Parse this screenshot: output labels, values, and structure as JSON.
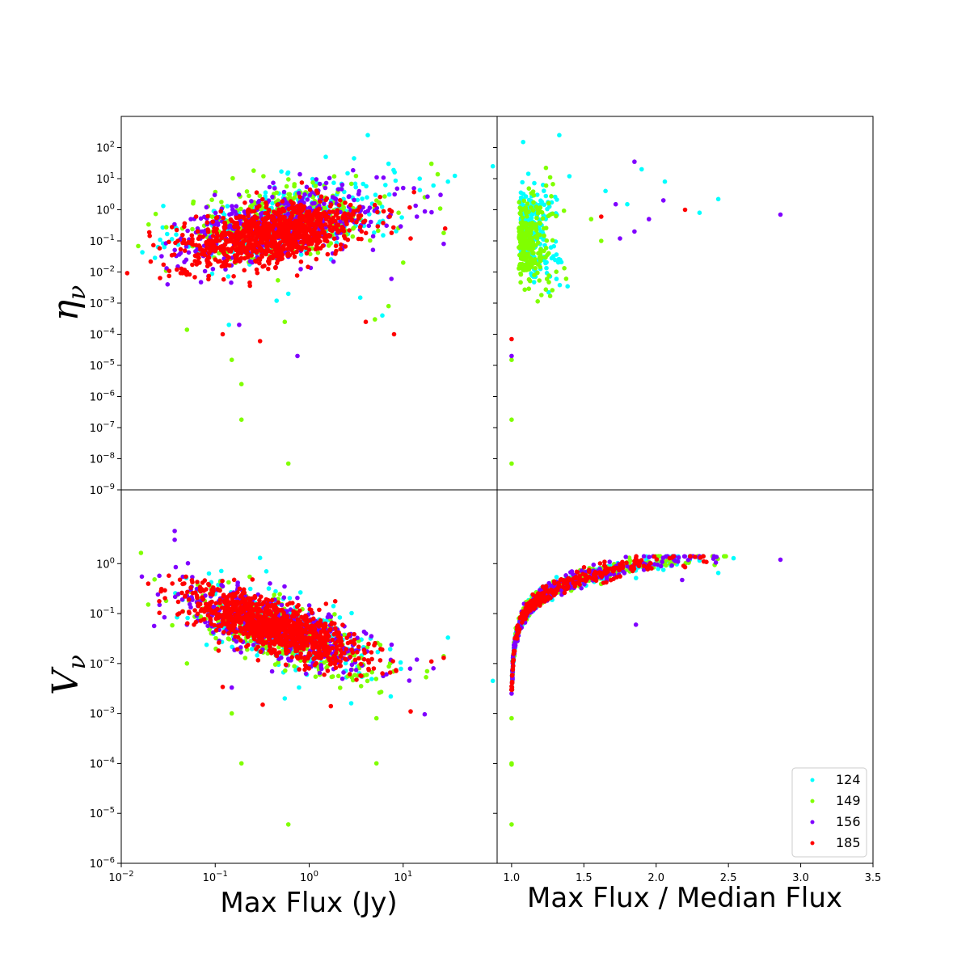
{
  "chart_data": [
    {
      "panel": "top-left",
      "type": "scatter",
      "xscale": "log",
      "yscale": "log",
      "xlim": [
        0.01,
        100
      ],
      "ylim": [
        1e-09,
        1000
      ],
      "xlabel": "",
      "ylabel": "η_ν",
      "ylabel_symbol": "η",
      "ylabel_subscript": "ν",
      "yticks": [
        {
          "value": 1e-09,
          "base": "10",
          "exp": "−9"
        },
        {
          "value": 1e-08,
          "base": "10",
          "exp": "−8"
        },
        {
          "value": 1e-07,
          "base": "10",
          "exp": "−7"
        },
        {
          "value": 1e-06,
          "base": "10",
          "exp": "−6"
        },
        {
          "value": 1e-05,
          "base": "10",
          "exp": "−5"
        },
        {
          "value": 0.0001,
          "base": "10",
          "exp": "−4"
        },
        {
          "value": 0.001,
          "base": "10",
          "exp": "−3"
        },
        {
          "value": 0.01,
          "base": "10",
          "exp": "−2"
        },
        {
          "value": 0.1,
          "base": "10",
          "exp": "−1"
        },
        {
          "value": 1,
          "base": "10",
          "exp": "0"
        },
        {
          "value": 10,
          "base": "10",
          "exp": "1"
        },
        {
          "value": 100,
          "base": "10",
          "exp": "2"
        }
      ],
      "clusters": [
        {
          "series": "124",
          "count": 320,
          "cx": 0.6,
          "cy": 0.5,
          "sx": 0.55,
          "sy": 0.65,
          "corr": 0.45
        },
        {
          "series": "149",
          "count": 320,
          "cx": 0.6,
          "cy": 0.5,
          "sx": 0.55,
          "sy": 0.65,
          "corr": 0.45
        },
        {
          "series": "156",
          "count": 450,
          "cx": 0.5,
          "cy": 0.3,
          "sx": 0.55,
          "sy": 0.62,
          "corr": 0.45
        },
        {
          "series": "185",
          "count": 1000,
          "cx": 0.4,
          "cy": 0.15,
          "sx": 0.48,
          "sy": 0.52,
          "corr": 0.45
        }
      ],
      "outliers": [
        {
          "series": "124",
          "x": 4.2,
          "y": 250
        },
        {
          "series": "124",
          "x": 3.0,
          "y": 45
        },
        {
          "series": "124",
          "x": 1.5,
          "y": 50
        },
        {
          "series": "124",
          "x": 7.0,
          "y": 30
        },
        {
          "series": "124",
          "x": 0.12,
          "y": 0.8
        },
        {
          "series": "124",
          "x": 0.6,
          "y": 0.002
        },
        {
          "series": "124",
          "x": 0.45,
          "y": 0.0012
        },
        {
          "series": "124",
          "x": 3.5,
          "y": 0.0015
        },
        {
          "series": "124",
          "x": 6.0,
          "y": 0.0004
        },
        {
          "series": "124",
          "x": 0.14,
          "y": 0.0002
        },
        {
          "series": "124",
          "x": 15,
          "y": 10
        },
        {
          "series": "124",
          "x": 21,
          "y": 6
        },
        {
          "series": "124",
          "x": 30,
          "y": 8
        },
        {
          "series": "124",
          "x": 90,
          "y": 25
        },
        {
          "series": "149",
          "x": 0.05,
          "y": 0.00014
        },
        {
          "series": "149",
          "x": 0.03,
          "y": 0.011
        },
        {
          "series": "149",
          "x": 0.15,
          "y": 1.5e-05
        },
        {
          "series": "149",
          "x": 0.19,
          "y": 2.5e-06
        },
        {
          "series": "149",
          "x": 0.19,
          "y": 1.8e-07
        },
        {
          "series": "149",
          "x": 0.6,
          "y": 7e-09
        },
        {
          "series": "149",
          "x": 7.0,
          "y": 0.0008
        },
        {
          "series": "149",
          "x": 10,
          "y": 0.02
        },
        {
          "series": "149",
          "x": 0.55,
          "y": 0.00025
        },
        {
          "series": "149",
          "x": 5.0,
          "y": 0.0003
        },
        {
          "series": "149",
          "x": 27,
          "y": 0.18
        },
        {
          "series": "149",
          "x": 20,
          "y": 30
        },
        {
          "series": "156",
          "x": 0.75,
          "y": 2e-05
        },
        {
          "series": "156",
          "x": 0.065,
          "y": 0.25
        },
        {
          "series": "156",
          "x": 0.04,
          "y": 0.015
        },
        {
          "series": "156",
          "x": 0.055,
          "y": 0.5
        },
        {
          "series": "156",
          "x": 0.18,
          "y": 0.0002
        },
        {
          "series": "156",
          "x": 27,
          "y": 0.08
        },
        {
          "series": "156",
          "x": 14,
          "y": 0.6
        },
        {
          "series": "156",
          "x": 25,
          "y": 3
        },
        {
          "series": "156",
          "x": 7.5,
          "y": 0.006
        },
        {
          "series": "156",
          "x": 10,
          "y": 5
        },
        {
          "series": "185",
          "x": 0.3,
          "y": 6e-05
        },
        {
          "series": "185",
          "x": 0.12,
          "y": 0.0001
        },
        {
          "series": "185",
          "x": 0.04,
          "y": 0.1
        },
        {
          "series": "185",
          "x": 28,
          "y": 0.25
        },
        {
          "series": "185",
          "x": 12,
          "y": 0.12
        },
        {
          "series": "185",
          "x": 8,
          "y": 0.0001
        },
        {
          "series": "185",
          "x": 4,
          "y": 0.00025
        },
        {
          "series": "185",
          "x": 0.05,
          "y": 0.01
        }
      ]
    },
    {
      "panel": "top-right",
      "type": "scatter",
      "xscale": "linear",
      "yscale": "log",
      "xlim": [
        0.9,
        3.5
      ],
      "ylim": [
        1e-09,
        1000
      ],
      "xlabel": "",
      "ylabel": "",
      "clusters": [
        {
          "series": "124",
          "count": 260,
          "cx": 1.08,
          "cy": 0.2,
          "sx": 0.12,
          "sy": 0.7,
          "corr": 0.55
        },
        {
          "series": "149",
          "count": 260,
          "cx": 1.07,
          "cy": 0.1,
          "sx": 0.11,
          "sy": 0.7,
          "corr": 0.55
        },
        {
          "series": "156",
          "count": 380,
          "cx": 1.09,
          "cy": -0.1,
          "sx": 0.13,
          "sy": 0.8,
          "corr": 0.55
        },
        {
          "series": "185",
          "count": 900,
          "cx": 1.06,
          "cy": -0.2,
          "sx": 0.09,
          "sy": 0.75,
          "corr": 0.55
        }
      ],
      "outliers": [
        {
          "series": "124",
          "x": 1.33,
          "y": 250
        },
        {
          "series": "124",
          "x": 1.08,
          "y": 150
        },
        {
          "series": "124",
          "x": 1.9,
          "y": 20
        },
        {
          "series": "124",
          "x": 2.06,
          "y": 8
        },
        {
          "series": "124",
          "x": 2.43,
          "y": 2.2
        },
        {
          "series": "124",
          "x": 2.3,
          "y": 0.8
        },
        {
          "series": "124",
          "x": 1.4,
          "y": 12
        },
        {
          "series": "124",
          "x": 1.65,
          "y": 4
        },
        {
          "series": "124",
          "x": 1.8,
          "y": 1.5
        },
        {
          "series": "149",
          "x": 1.0,
          "y": 1.5e-05
        },
        {
          "series": "149",
          "x": 1.0,
          "y": 1.8e-07
        },
        {
          "series": "149",
          "x": 1.0,
          "y": 7e-09
        },
        {
          "series": "149",
          "x": 1.62,
          "y": 0.1
        },
        {
          "series": "149",
          "x": 1.55,
          "y": 0.5
        },
        {
          "series": "156",
          "x": 2.86,
          "y": 0.7
        },
        {
          "series": "156",
          "x": 1.85,
          "y": 35
        },
        {
          "series": "156",
          "x": 2.05,
          "y": 2
        },
        {
          "series": "156",
          "x": 1.95,
          "y": 0.5
        },
        {
          "series": "156",
          "x": 1.85,
          "y": 0.2
        },
        {
          "series": "156",
          "x": 1.75,
          "y": 0.12
        },
        {
          "series": "156",
          "x": 1.0,
          "y": 2e-05
        },
        {
          "series": "156",
          "x": 1.72,
          "y": 1.5
        },
        {
          "series": "185",
          "x": 2.2,
          "y": 1.0
        },
        {
          "series": "185",
          "x": 1.0,
          "y": 7e-05
        },
        {
          "series": "185",
          "x": 1.62,
          "y": 0.6
        }
      ]
    },
    {
      "panel": "bottom-left",
      "type": "scatter",
      "xscale": "log",
      "yscale": "log",
      "xlim": [
        0.01,
        100
      ],
      "ylim": [
        1e-06,
        30
      ],
      "xlabel": "Max Flux (Jy)",
      "ylabel": "V_ν",
      "ylabel_symbol": "V",
      "ylabel_subscript": "ν",
      "yticks": [
        {
          "value": 1e-06,
          "base": "10",
          "exp": "−6"
        },
        {
          "value": 1e-05,
          "base": "10",
          "exp": "−5"
        },
        {
          "value": 0.0001,
          "base": "10",
          "exp": "−4"
        },
        {
          "value": 0.001,
          "base": "10",
          "exp": "−3"
        },
        {
          "value": 0.01,
          "base": "10",
          "exp": "−2"
        },
        {
          "value": 0.1,
          "base": "10",
          "exp": "−1"
        },
        {
          "value": 1,
          "base": "10",
          "exp": "0"
        }
      ],
      "xticks": [
        {
          "value": 0.01,
          "base": "10",
          "exp": "−2"
        },
        {
          "value": 0.1,
          "base": "10",
          "exp": "−1"
        },
        {
          "value": 1,
          "base": "10",
          "exp": "0"
        },
        {
          "value": 10,
          "base": "10",
          "exp": "1"
        }
      ],
      "clusters": [
        {
          "series": "124",
          "count": 320,
          "cx": 0.5,
          "cy": 0.045,
          "sx": 0.5,
          "sy": 0.42,
          "corr": -0.7
        },
        {
          "series": "149",
          "count": 320,
          "cx": 0.5,
          "cy": 0.04,
          "sx": 0.5,
          "sy": 0.42,
          "corr": -0.7
        },
        {
          "series": "156",
          "count": 450,
          "cx": 0.45,
          "cy": 0.05,
          "sx": 0.5,
          "sy": 0.42,
          "corr": -0.7
        },
        {
          "series": "185",
          "count": 1000,
          "cx": 0.4,
          "cy": 0.055,
          "sx": 0.45,
          "sy": 0.37,
          "corr": -0.72
        }
      ],
      "outliers": [
        {
          "series": "124",
          "x": 0.3,
          "y": 1.3
        },
        {
          "series": "124",
          "x": 0.55,
          "y": 0.002
        },
        {
          "series": "124",
          "x": 2.8,
          "y": 0.0016
        },
        {
          "series": "124",
          "x": 30,
          "y": 0.033
        },
        {
          "series": "124",
          "x": 90,
          "y": 0.0045
        },
        {
          "series": "124",
          "x": 0.35,
          "y": 0.7
        },
        {
          "series": "149",
          "x": 0.03,
          "y": 0.18
        },
        {
          "series": "149",
          "x": 0.05,
          "y": 0.01
        },
        {
          "series": "149",
          "x": 0.15,
          "y": 0.001
        },
        {
          "series": "149",
          "x": 0.19,
          "y": 0.0001
        },
        {
          "series": "149",
          "x": 0.6,
          "y": 6e-06
        },
        {
          "series": "149",
          "x": 5.2,
          "y": 0.0008
        },
        {
          "series": "149",
          "x": 5.2,
          "y": 0.0001
        },
        {
          "series": "149",
          "x": 18,
          "y": 0.007
        },
        {
          "series": "149",
          "x": 27,
          "y": 0.014
        },
        {
          "series": "156",
          "x": 0.037,
          "y": 4.5
        },
        {
          "series": "156",
          "x": 0.037,
          "y": 3.0
        },
        {
          "series": "156",
          "x": 0.038,
          "y": 0.85
        },
        {
          "series": "156",
          "x": 0.05,
          "y": 0.06
        },
        {
          "series": "156",
          "x": 0.055,
          "y": 0.3
        },
        {
          "series": "156",
          "x": 0.15,
          "y": 0.0033
        },
        {
          "series": "156",
          "x": 21,
          "y": 0.008
        },
        {
          "series": "156",
          "x": 14,
          "y": 0.012
        },
        {
          "series": "185",
          "x": 0.035,
          "y": 0.4
        },
        {
          "series": "185",
          "x": 0.045,
          "y": 0.11
        },
        {
          "series": "185",
          "x": 0.12,
          "y": 0.0034
        },
        {
          "series": "185",
          "x": 0.32,
          "y": 0.0015
        },
        {
          "series": "185",
          "x": 1.7,
          "y": 0.0014
        },
        {
          "series": "185",
          "x": 12,
          "y": 0.0011
        },
        {
          "series": "185",
          "x": 27,
          "y": 0.013
        },
        {
          "series": "185",
          "x": 20,
          "y": 0.011
        }
      ]
    },
    {
      "panel": "bottom-right",
      "type": "scatter",
      "xscale": "linear",
      "yscale": "log",
      "xlim": [
        0.9,
        3.5
      ],
      "ylim": [
        1e-06,
        30
      ],
      "xlabel": "Max Flux / Median Flux",
      "ylabel": "",
      "xticks": [
        "1.0",
        "1.5",
        "2.0",
        "2.5",
        "3.0",
        "3.5"
      ],
      "curve": {
        "y_top": 0.85,
        "x_span": 1.55,
        "density_count": 1200
      },
      "outliers": [
        {
          "series": "124",
          "x": 2.3,
          "y": 1.15
        },
        {
          "series": "124",
          "x": 2.43,
          "y": 0.65
        },
        {
          "series": "124",
          "x": 2.05,
          "y": 0.75
        },
        {
          "series": "124",
          "x": 1.95,
          "y": 0.8
        },
        {
          "series": "149",
          "x": 1.0,
          "y": 0.0001
        },
        {
          "series": "149",
          "x": 1.0,
          "y": 9.5e-05
        },
        {
          "series": "149",
          "x": 1.0,
          "y": 6e-06
        },
        {
          "series": "149",
          "x": 1.0,
          "y": 0.0008
        },
        {
          "series": "156",
          "x": 2.86,
          "y": 1.2
        },
        {
          "series": "156",
          "x": 1.86,
          "y": 0.06
        },
        {
          "series": "156",
          "x": 2.18,
          "y": 0.47
        },
        {
          "series": "156",
          "x": 1.0,
          "y": 0.0025
        },
        {
          "series": "185",
          "x": 2.2,
          "y": 0.85
        },
        {
          "series": "185",
          "x": 1.0,
          "y": 0.0035
        }
      ]
    }
  ],
  "legend": {
    "position": "lower-right",
    "entries": [
      {
        "label": "124",
        "color": "#00ffff"
      },
      {
        "label": "149",
        "color": "#80ff00"
      },
      {
        "label": "156",
        "color": "#8000ff"
      },
      {
        "label": "185",
        "color": "#ff0000"
      }
    ]
  }
}
